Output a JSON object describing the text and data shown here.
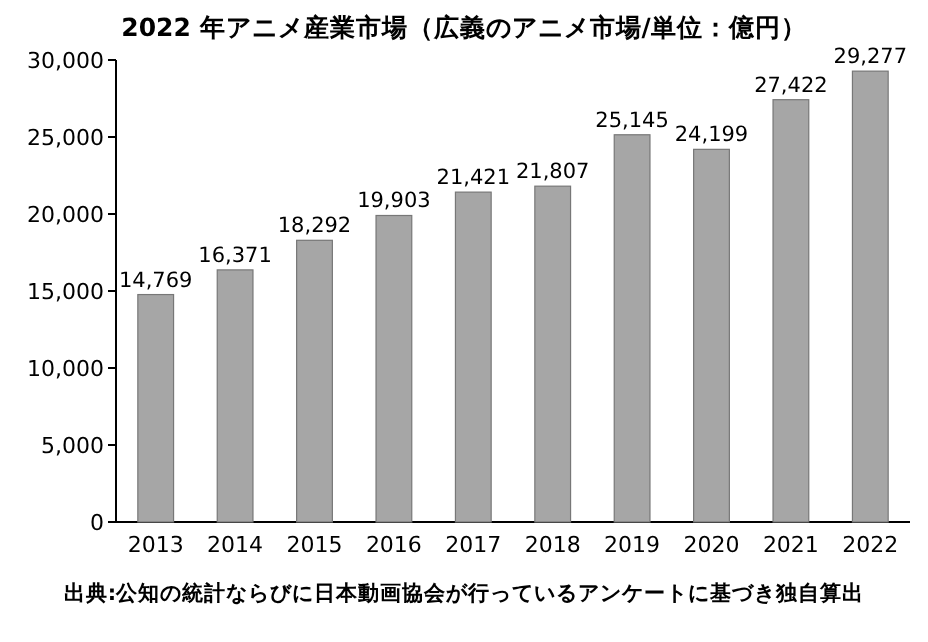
{
  "chart_data": {
    "type": "bar",
    "title": "2022 年アニメ産業市場（広義のアニメ市場/単位：億円）",
    "categories": [
      "2013",
      "2014",
      "2015",
      "2016",
      "2017",
      "2018",
      "2019",
      "2020",
      "2021",
      "2022"
    ],
    "values": [
      14769,
      16371,
      18292,
      19903,
      21421,
      21807,
      25145,
      24199,
      27422,
      29277
    ],
    "value_labels": [
      "14,769",
      "16,371",
      "18,292",
      "19,903",
      "21,421",
      "21,807",
      "25,145",
      "24,199",
      "27,422",
      "29,277"
    ],
    "color": "#a6a6a6",
    "ylim": [
      0,
      30000
    ],
    "yticks": [
      0,
      {
        "value": 5000,
        "label": "5,000"
      },
      {
        "value": 10000,
        "label": "10,000"
      },
      {
        "value": 15000,
        "label": "15,000"
      },
      {
        "value": 20000,
        "label": "20,000"
      },
      {
        "value": 25000,
        "label": "25,000"
      },
      {
        "value": 30000,
        "label": "30,000"
      }
    ],
    "grid": false,
    "annotations": [
      "出典:公知の統計ならびに日本動画協会が行っているアンケートに基づき独自算出"
    ]
  }
}
